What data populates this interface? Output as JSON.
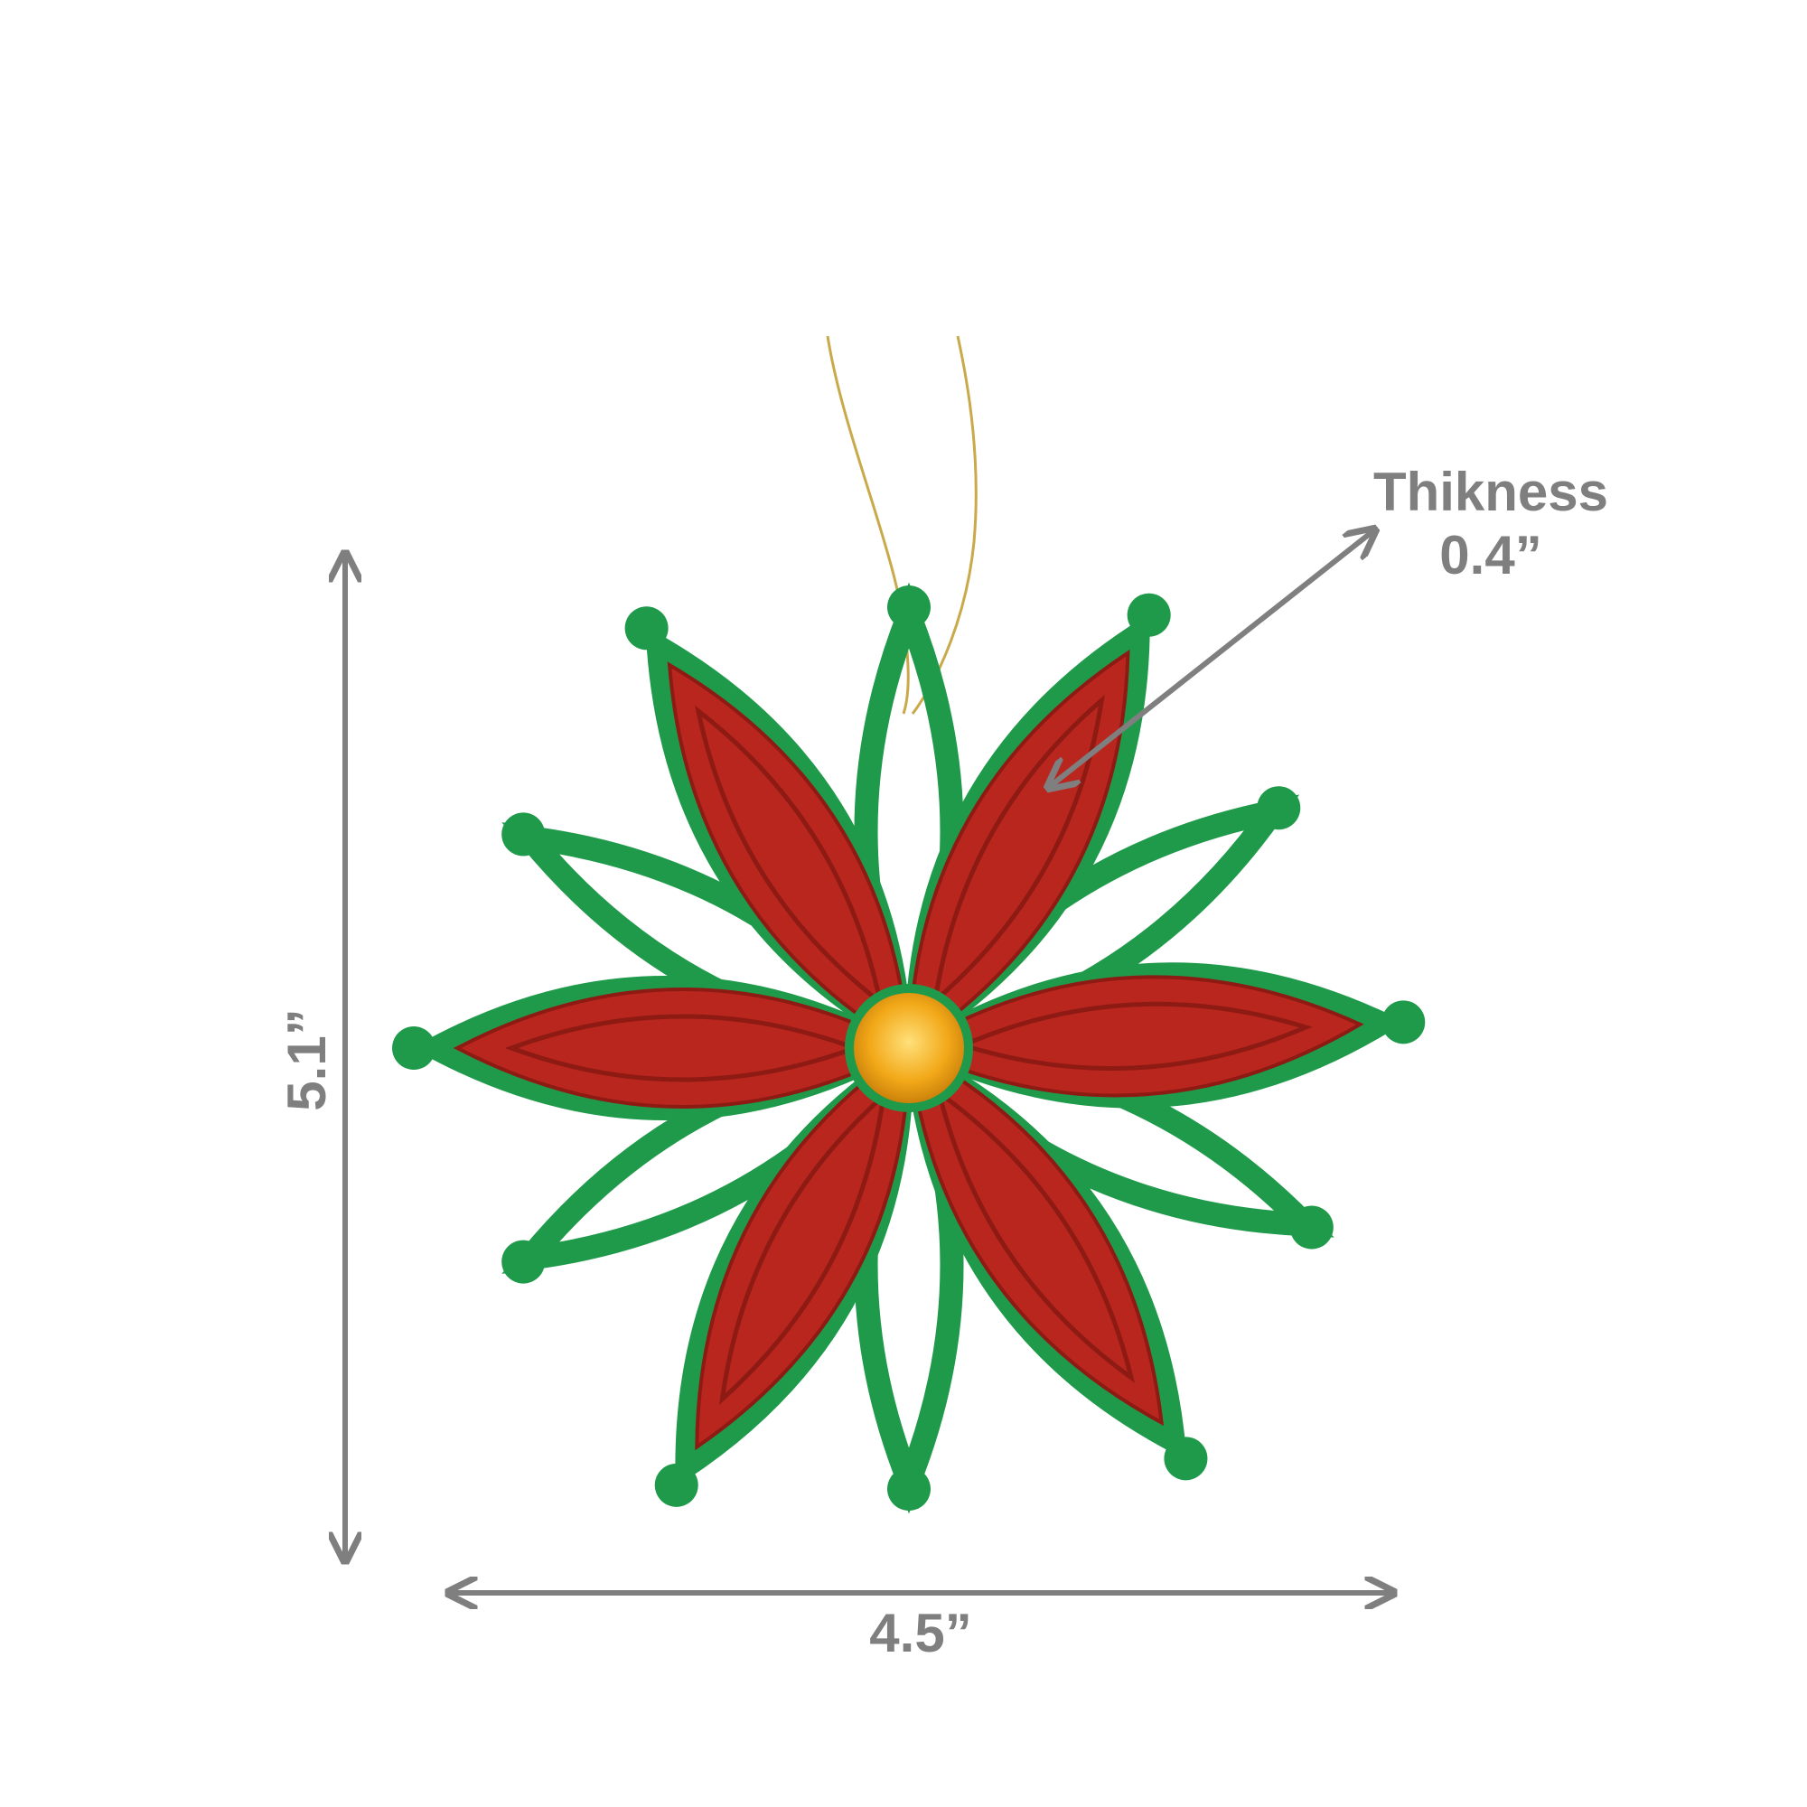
{
  "product": {
    "colors": {
      "petal_red": "#b8261e",
      "outline_green": "#1f9a4a",
      "gem": "#f2a818",
      "string": "#c9a94a",
      "annotation": "#7f7f7f"
    }
  },
  "dimensions": {
    "height_label": "5.1”",
    "width_label": "4.5”",
    "thickness_title": "Thikness",
    "thickness_value": "0.4”"
  }
}
